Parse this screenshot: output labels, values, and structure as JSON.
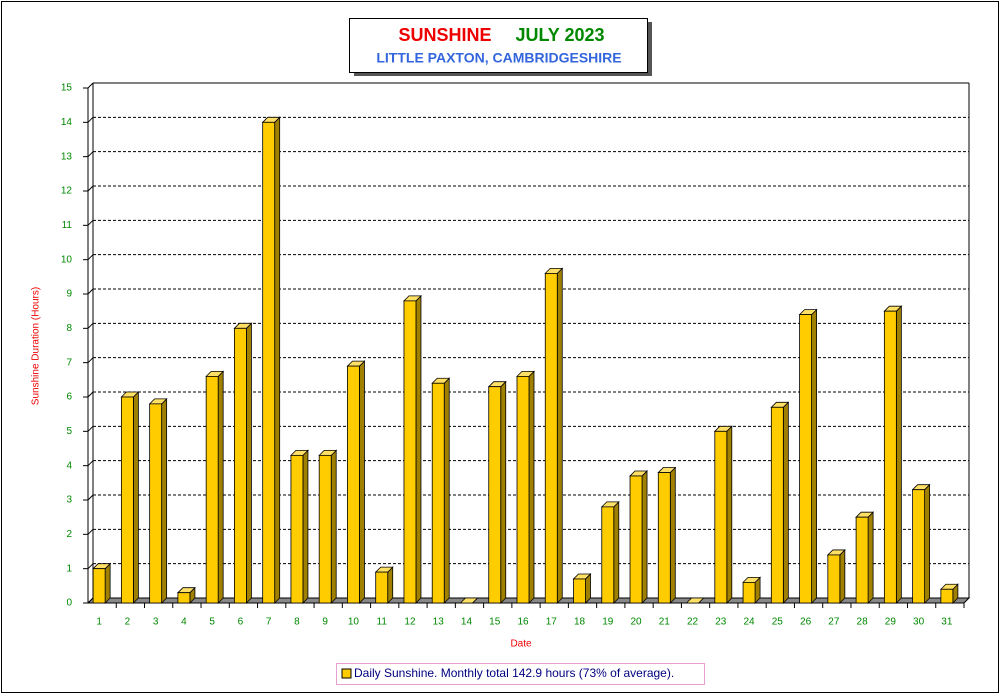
{
  "chart_data": {
    "type": "bar",
    "title": "SUNSHINE",
    "title_period": "JULY 2023",
    "subtitle": "LITTLE PAXTON, CAMBRIDGESHIRE",
    "x_label": "Date",
    "y_label": "Sunshine Duration (Hours)",
    "categories": [
      "1",
      "2",
      "3",
      "4",
      "5",
      "6",
      "7",
      "8",
      "9",
      "10",
      "11",
      "12",
      "13",
      "14",
      "15",
      "16",
      "17",
      "18",
      "19",
      "20",
      "21",
      "22",
      "23",
      "24",
      "25",
      "26",
      "27",
      "28",
      "29",
      "30",
      "31"
    ],
    "series": [
      {
        "name": "Daily Sunshine. Monthly total 142.9 hours (73% of average).",
        "color": "#ffcc00",
        "values": [
          1.0,
          6.0,
          5.8,
          0.3,
          6.6,
          8.0,
          14.0,
          4.3,
          4.3,
          6.9,
          0.9,
          8.8,
          6.4,
          0.0,
          6.3,
          6.6,
          9.6,
          0.7,
          2.8,
          3.7,
          3.8,
          0.0,
          5.0,
          0.6,
          5.7,
          8.4,
          1.4,
          2.5,
          8.5,
          3.3,
          0.4
        ]
      }
    ],
    "ylim": [
      0,
      15
    ],
    "yticks": [
      0,
      1,
      2,
      3,
      4,
      5,
      6,
      7,
      8,
      9,
      10,
      11,
      12,
      13,
      14,
      15
    ],
    "grid": true
  }
}
